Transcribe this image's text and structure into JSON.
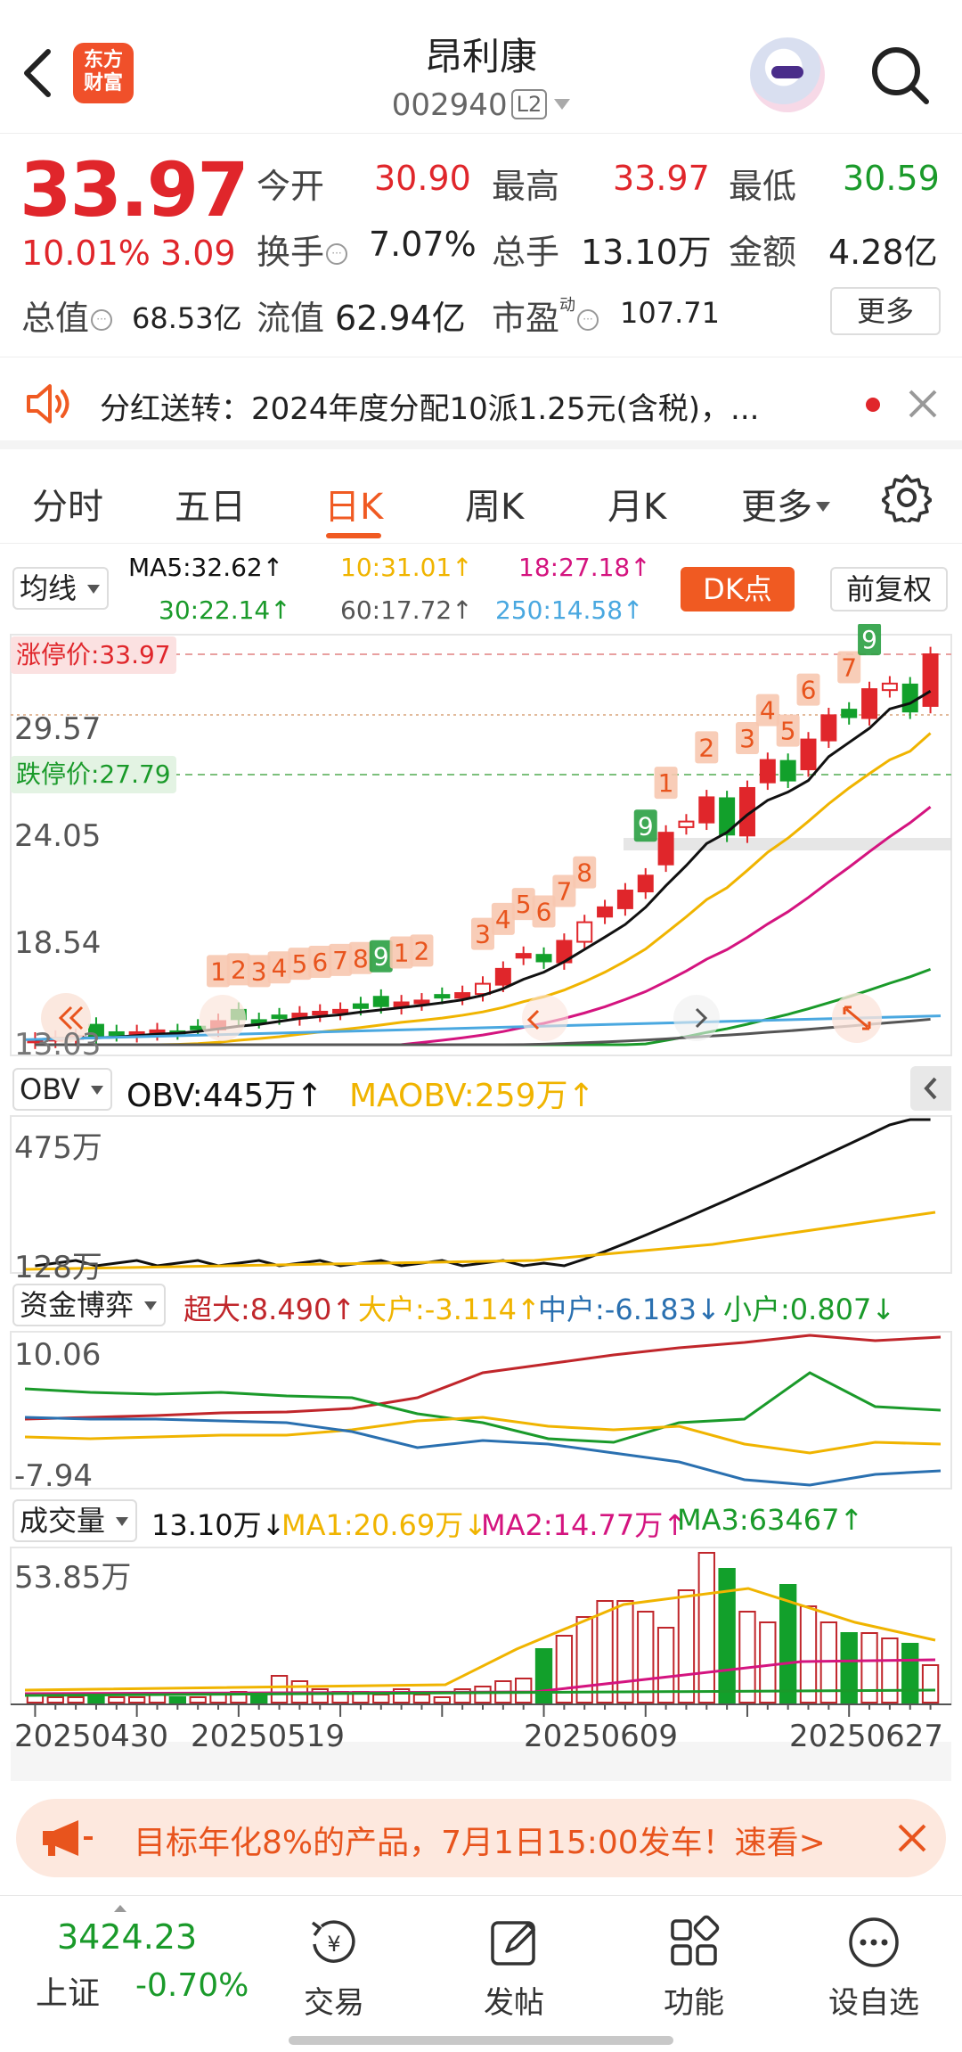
{
  "header": {
    "title": "昂利康",
    "code": "002940",
    "badge": "L2",
    "logo_line1": "东方",
    "logo_line2": "财富"
  },
  "quote": {
    "price": "33.97",
    "change_pct": "10.01%",
    "change_abs": "3.09",
    "open_label": "今开",
    "open": "30.90",
    "high_label": "最高",
    "high": "33.97",
    "low_label": "最低",
    "low": "30.59",
    "turnover_label": "换手",
    "turnover": "7.07%",
    "volume_label": "总手",
    "volume": "13.10万",
    "amount_label": "金额",
    "amount": "4.28亿",
    "mcap_label": "总值",
    "mcap": "68.53亿",
    "float_label": "流值",
    "float_mcap": "62.94亿",
    "pe_label": "市盈",
    "pe_sup": "动",
    "pe": "107.71",
    "more_label": "更多"
  },
  "notice": {
    "text": "分红送转：2024年度分配10派1.25元(含税)，..."
  },
  "tabs": [
    {
      "label": "分时"
    },
    {
      "label": "五日"
    },
    {
      "label": "日K"
    },
    {
      "label": "周K"
    },
    {
      "label": "月K"
    },
    {
      "label": "更多"
    }
  ],
  "ma_row": {
    "selector": "均线",
    "ma5": "MA5:32.62↑",
    "ma10": "10:31.01↑",
    "ma18": "18:27.18↑",
    "ma30": "30:22.14↑",
    "ma60": "60:17.72↑",
    "ma250": "250:14.58↑",
    "dk_label": "DK点",
    "fq_label": "前复权"
  },
  "kline": {
    "limit_up_label": "涨停价:33.97",
    "limit_down_label": "跌停价:27.79",
    "y_labels": [
      "29.57",
      "24.05",
      "18.54"
    ],
    "y_bottom": "13.03",
    "colors": {
      "up": "#e0262b",
      "down": "#12a02b",
      "ma5": "#111111",
      "ma10": "#f0b400",
      "ma18": "#d4147f",
      "ma30": "#1a9a2a",
      "ma60": "#555555",
      "ma250": "#4aa8e0"
    }
  },
  "obv": {
    "selector": "OBV",
    "obv": "OBV:445万↑",
    "maobv": "MAOBV:259万↑",
    "top": "475万",
    "bottom": "128万"
  },
  "capital": {
    "selector": "资金博弈",
    "super": "超大:8.490↑",
    "large": "大户:-3.114↑",
    "mid": "中户:-6.183↓",
    "small": "小户:0.807↓",
    "top": "10.06",
    "bottom": "-7.94"
  },
  "volume": {
    "selector": "成交量",
    "vol": "13.10万↓",
    "ma1": "MA1:20.69万↓",
    "ma2": "MA2:14.77万↑",
    "ma3": "MA3:63467↑",
    "top": "53.85万",
    "dates": [
      "20250430",
      "20250519",
      "20250609",
      "20250627"
    ]
  },
  "promo": {
    "text": "目标年化8%的产品，7月1日15:00发车！速看>"
  },
  "bottom": {
    "index_value": "3424.23",
    "index_name": "上证",
    "index_change": "-0.70%",
    "nav": [
      {
        "label": "交易"
      },
      {
        "label": "发帖"
      },
      {
        "label": "功能"
      },
      {
        "label": "设自选"
      }
    ]
  },
  "chart_data": {
    "type": "candlestick",
    "series": [
      {
        "name": "MA5",
        "values": [
          32.62
        ]
      },
      {
        "name": "MA10",
        "values": [
          31.01
        ]
      },
      {
        "name": "MA18",
        "values": [
          27.18
        ]
      },
      {
        "name": "MA30",
        "values": [
          22.14
        ]
      },
      {
        "name": "MA60",
        "values": [
          17.72
        ]
      },
      {
        "name": "MA250",
        "values": [
          14.58
        ]
      }
    ],
    "ylim": [
      13.03,
      33.97
    ],
    "x_ticks": [
      "20250430",
      "20250519",
      "20250609",
      "20250627"
    ],
    "candles_close": [
      13.3,
      13.4,
      13.5,
      13.4,
      13.6,
      13.7,
      13.8,
      13.7,
      13.9,
      14.3,
      14.4,
      14.3,
      14.5,
      14.7,
      14.8,
      14.9,
      15.0,
      15.1,
      15.3,
      15.4,
      15.6,
      15.8,
      16.3,
      17.1,
      17.9,
      17.5,
      18.6,
      19.6,
      20.4,
      21.3,
      22.1,
      24.4,
      25.0,
      26.3,
      24.3,
      26.8,
      28.3,
      27.2,
      29.4,
      30.7,
      30.6,
      32.1,
      32.4,
      30.9,
      33.97
    ]
  }
}
